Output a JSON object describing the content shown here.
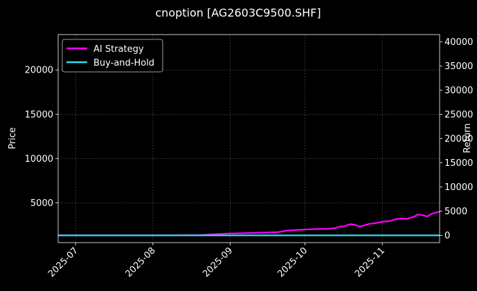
{
  "chart_data": {
    "type": "line",
    "title": "cnoption [AG2603C9500.SHF]",
    "xlabel": "",
    "ylabel_left": "Price",
    "ylabel_right": "Return",
    "x_ticks": [
      "2025-07",
      "2025-08",
      "2025-09",
      "2025-10",
      "2025-11"
    ],
    "x_range": [
      "2025-06-24",
      "2025-11-24"
    ],
    "y_left_ticks": [
      5000,
      10000,
      15000,
      20000
    ],
    "y_left_range": [
      500,
      24000
    ],
    "y_right_ticks": [
      0,
      5000,
      10000,
      15000,
      20000,
      25000,
      30000,
      35000,
      40000
    ],
    "y_right_range": [
      -1500,
      41500
    ],
    "grid": true,
    "legend_position": "top-left",
    "series": [
      {
        "name": "AI Strategy",
        "axis": "right",
        "color": "#ff00ff",
        "x": [
          "2025-06-24",
          "2025-07-15",
          "2025-08-01",
          "2025-08-20",
          "2025-09-01",
          "2025-09-10",
          "2025-09-20",
          "2025-09-24",
          "2025-10-01",
          "2025-10-05",
          "2025-10-10",
          "2025-10-13",
          "2025-10-15",
          "2025-10-17",
          "2025-10-19",
          "2025-10-21",
          "2025-10-23",
          "2025-10-27",
          "2025-10-29",
          "2025-11-01",
          "2025-11-04",
          "2025-11-06",
          "2025-11-09",
          "2025-11-11",
          "2025-11-12",
          "2025-11-14",
          "2025-11-15",
          "2025-11-17",
          "2025-11-19",
          "2025-11-21",
          "2025-11-24"
        ],
        "values": [
          0,
          0,
          0,
          50,
          400,
          500,
          650,
          1000,
          1200,
          1300,
          1350,
          1500,
          1800,
          1900,
          2300,
          2200,
          1800,
          2400,
          2500,
          2800,
          2950,
          3300,
          3500,
          3400,
          3600,
          3900,
          4300,
          4200,
          3900,
          4500,
          4900
        ]
      },
      {
        "name": "Buy-and-Hold",
        "axis": "right",
        "color": "#33ddee",
        "x": [
          "2025-06-24",
          "2025-11-24"
        ],
        "values": [
          0,
          0
        ]
      }
    ]
  }
}
